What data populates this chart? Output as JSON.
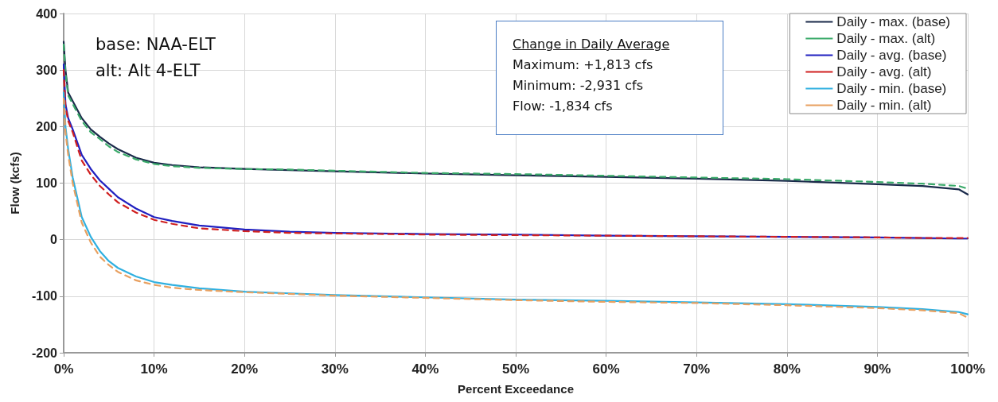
{
  "chart_data": {
    "type": "line",
    "xlabel": "Percent Exceedance",
    "ylabel": "Flow (kcfs)",
    "x": [
      0,
      0.2,
      0.5,
      1,
      2,
      3,
      4,
      5,
      6,
      8,
      10,
      12,
      15,
      20,
      25,
      30,
      40,
      50,
      60,
      70,
      80,
      90,
      95,
      99,
      100
    ],
    "series": [
      {
        "name": "Daily - max. (base)",
        "color": "#1a2a4a",
        "line_style": "solid",
        "values": [
          350,
          300,
          260,
          245,
          215,
          195,
          182,
          170,
          160,
          145,
          136,
          132,
          128,
          125,
          123,
          121,
          117,
          114,
          111,
          108,
          104,
          98,
          95,
          89,
          80
        ]
      },
      {
        "name": "Daily - max. (alt)",
        "color": "#3aaa6a",
        "line_style": "dashed",
        "values": [
          345,
          295,
          255,
          240,
          210,
          190,
          178,
          165,
          155,
          142,
          134,
          130,
          127,
          125,
          124,
          122,
          118,
          116,
          113,
          110,
          107,
          102,
          99,
          95,
          90
        ]
      },
      {
        "name": "Daily - avg. (base)",
        "color": "#2020c0",
        "line_style": "solid",
        "values": [
          310,
          240,
          215,
          195,
          150,
          125,
          105,
          90,
          75,
          55,
          40,
          33,
          25,
          18,
          14,
          12,
          10,
          9,
          7,
          6,
          5,
          4,
          3,
          2,
          2
        ]
      },
      {
        "name": "Daily - avg. (alt)",
        "color": "#d02020",
        "line_style": "dashed",
        "values": [
          300,
          235,
          210,
          190,
          140,
          115,
          95,
          80,
          66,
          48,
          35,
          28,
          20,
          15,
          12,
          11,
          9,
          8,
          7,
          6,
          5,
          4,
          3,
          3,
          3
        ]
      },
      {
        "name": "Daily - min. (base)",
        "color": "#30b0e0",
        "line_style": "solid",
        "values": [
          260,
          200,
          160,
          110,
          40,
          5,
          -20,
          -38,
          -50,
          -65,
          -75,
          -80,
          -86,
          -92,
          -95,
          -98,
          -102,
          -106,
          -108,
          -111,
          -114,
          -119,
          -123,
          -128,
          -132
        ]
      },
      {
        "name": "Daily - min. (alt)",
        "color": "#e8a060",
        "line_style": "dashed",
        "values": [
          250,
          190,
          150,
          100,
          30,
          -5,
          -30,
          -45,
          -57,
          -72,
          -80,
          -85,
          -89,
          -93,
          -96,
          -99,
          -103,
          -107,
          -110,
          -112,
          -116,
          -121,
          -125,
          -130,
          -138
        ]
      }
    ],
    "xlim": [
      0,
      100
    ],
    "xticks": [
      {
        "value": 0,
        "label": "0%"
      },
      {
        "value": 10,
        "label": "10%"
      },
      {
        "value": 20,
        "label": "20%"
      },
      {
        "value": 30,
        "label": "30%"
      },
      {
        "value": 40,
        "label": "40%"
      },
      {
        "value": 50,
        "label": "50%"
      },
      {
        "value": 60,
        "label": "60%"
      },
      {
        "value": 70,
        "label": "70%"
      },
      {
        "value": 80,
        "label": "80%"
      },
      {
        "value": 90,
        "label": "90%"
      },
      {
        "value": 100,
        "label": "100%"
      }
    ],
    "ylim": [
      -200,
      400
    ],
    "yticks": [
      -200,
      -100,
      0,
      100,
      200,
      300,
      400
    ],
    "grid": true,
    "legend": "top right",
    "marker": "none",
    "annotations": [
      "base: NAA-ELT",
      "alt: Alt 4-ELT",
      "Change in Daily Average",
      "Maximum: +1,813 cfs",
      "Minimum: -2,931 cfs",
      "Flow: -1,834 cfs"
    ]
  }
}
